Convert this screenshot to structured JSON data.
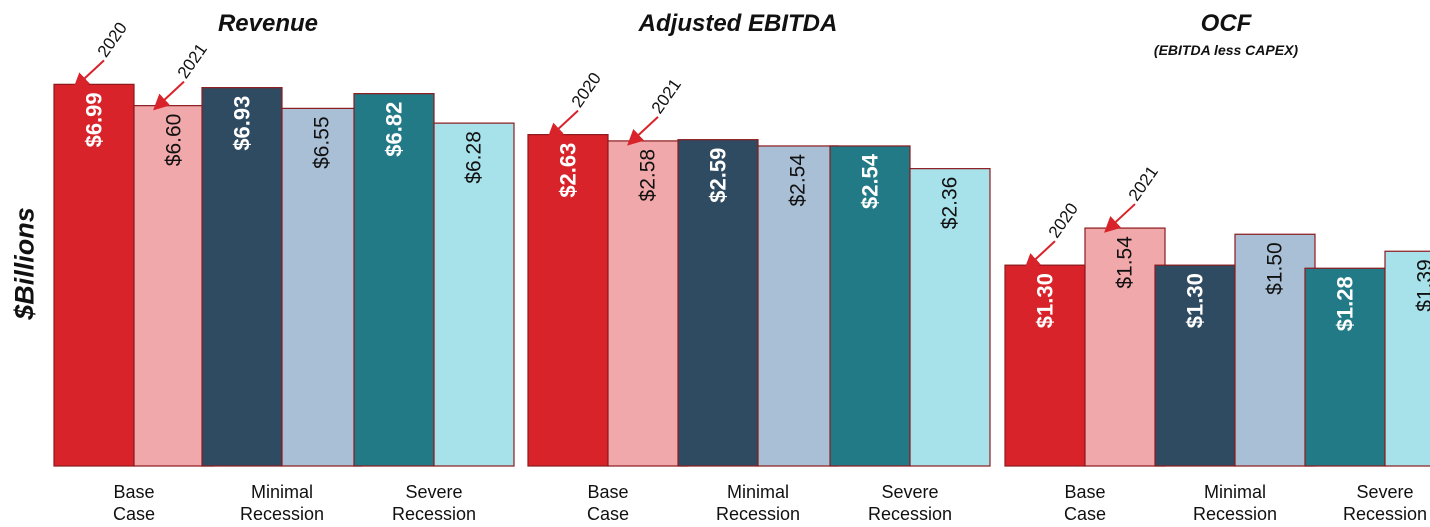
{
  "ylabel": "$Billions",
  "colors": {
    "base": [
      "#d9232a",
      "#f0a8aa"
    ],
    "minimal": [
      "#2f4b62",
      "#a9bfd6"
    ],
    "severe": [
      "#237a87",
      "#a7e1ea"
    ],
    "bar_stroke": "#8b1a1d",
    "arrow": "#d9232a"
  },
  "chart_data": [
    {
      "type": "bar",
      "title": "Revenue",
      "subtitle": "",
      "categories": [
        "Base Case",
        "Minimal Recession",
        "Severe Recession"
      ],
      "series": [
        {
          "name": "2020",
          "values": [
            6.99,
            6.93,
            6.82
          ],
          "labels": [
            "$6.99",
            "$6.93",
            "$6.82"
          ]
        },
        {
          "name": "2021",
          "values": [
            6.6,
            6.55,
            6.28
          ],
          "labels": [
            "$6.60",
            "$6.55",
            "$6.28"
          ]
        }
      ]
    },
    {
      "type": "bar",
      "title": "Adjusted EBITDA",
      "subtitle": "",
      "categories": [
        "Base Case",
        "Minimal Recession",
        "Severe Recession"
      ],
      "series": [
        {
          "name": "2020",
          "values": [
            2.63,
            2.59,
            2.54
          ],
          "labels": [
            "$2.63",
            "$2.59",
            "$2.54"
          ]
        },
        {
          "name": "2021",
          "values": [
            2.58,
            2.54,
            2.36
          ],
          "labels": [
            "$2.58",
            "$2.54",
            "$2.36"
          ]
        }
      ]
    },
    {
      "type": "bar",
      "title": "OCF",
      "subtitle": "(EBITDA less CAPEX)",
      "categories": [
        "Base Case",
        "Minimal Recession",
        "Severe Recession"
      ],
      "series": [
        {
          "name": "2020",
          "values": [
            1.3,
            1.3,
            1.28
          ],
          "labels": [
            "$1.30",
            "$1.30",
            "$1.28"
          ]
        },
        {
          "name": "2021",
          "values": [
            1.54,
            1.5,
            1.39
          ],
          "labels": [
            "$1.54",
            "$1.50",
            "$1.39"
          ]
        }
      ]
    }
  ]
}
